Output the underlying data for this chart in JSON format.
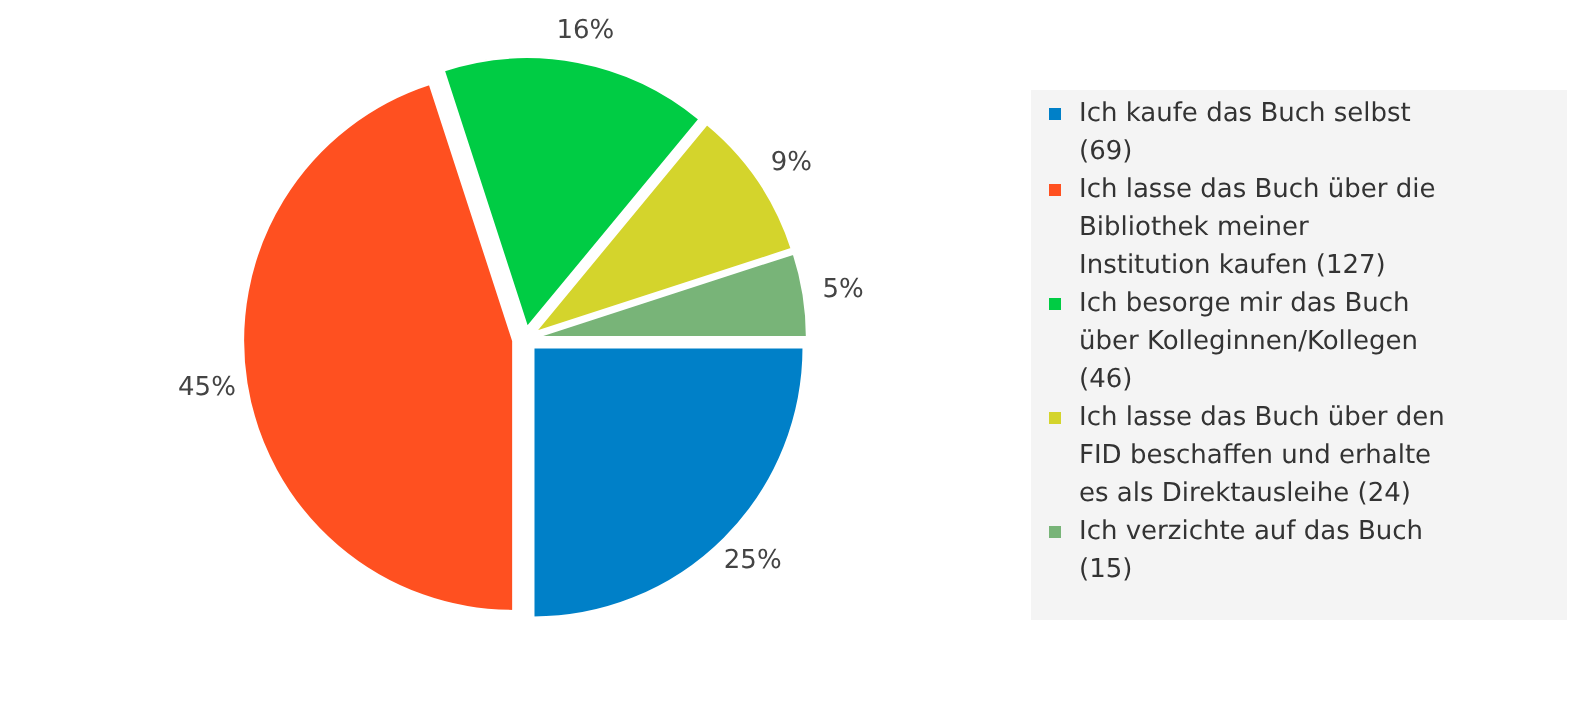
{
  "chart_data": {
    "type": "pie",
    "categories": [
      "Ich kaufe das Buch selbst (69)",
      "Ich lasse das Buch über die Bibliothek meiner Institution kaufen (127)",
      "Ich besorge mir das Buch über Kolleginnen/Kollegen (46)",
      "Ich lasse das Buch über den FID beschaffen und erhalte es als Direktausleihe (24)",
      "Ich verzichte auf das Buch (15)"
    ],
    "values": [
      25,
      45,
      16,
      9,
      5
    ],
    "colors": [
      "#0080c8",
      "#ff5020",
      "#00cc44",
      "#d4d42c",
      "#78b478"
    ],
    "value_labels": [
      "25%",
      "45%",
      "16%",
      "9%",
      "5%"
    ],
    "legend": "right"
  }
}
